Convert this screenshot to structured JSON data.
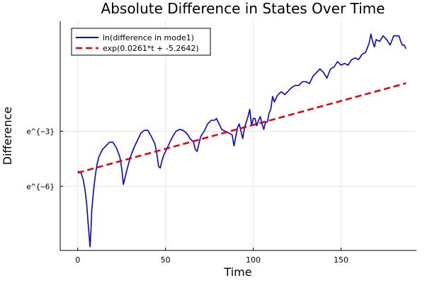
{
  "chart_data": {
    "type": "line",
    "title": "Absolute Difference in States Over Time",
    "xlabel": "Time",
    "ylabel": "Difference",
    "xlim": [
      -10,
      193
    ],
    "ylim": [
      -9.5,
      3
    ],
    "x_ticks": [
      0,
      50,
      100,
      150
    ],
    "y_ticks": [
      {
        "value": -3,
        "label": "e^{−3}"
      },
      {
        "value": -6,
        "label": "e^{−6}"
      }
    ],
    "y_scale": "log (natural)",
    "grid": true,
    "legend_position": "top-left",
    "colors": {
      "series1": "#0000ee",
      "series2": "#ee0000"
    },
    "series": [
      {
        "name": "ln(difference in mode1)",
        "style": "solid",
        "x": [
          0,
          1,
          2,
          3,
          4,
          5,
          6,
          7,
          7.5,
          8,
          9,
          10,
          11,
          12,
          14,
          16,
          18,
          20,
          22,
          24,
          25,
          26,
          28,
          30,
          32,
          34,
          36,
          38,
          40,
          42,
          44,
          45,
          46,
          47,
          48,
          49,
          50,
          52,
          54,
          56,
          58,
          60,
          62,
          64,
          66,
          67,
          68,
          69,
          70,
          72,
          74,
          76,
          78,
          79,
          80,
          81,
          82,
          84,
          86,
          88,
          89,
          90,
          91,
          92,
          94,
          95,
          96,
          97,
          98,
          99,
          100,
          101,
          102,
          103,
          104,
          105,
          106,
          107,
          108,
          109,
          110,
          111,
          112,
          114,
          116,
          118,
          120,
          122,
          124,
          126,
          128,
          130,
          132,
          134,
          136,
          138,
          140,
          142,
          144,
          146,
          148,
          150,
          152,
          154,
          156,
          158,
          160,
          162,
          164,
          166,
          167,
          168,
          169,
          170,
          172,
          174,
          176,
          178,
          180,
          182,
          183,
          184,
          185,
          186,
          187
        ],
        "values": [
          -5.2,
          -5.2,
          -5.3,
          -5.6,
          -6.1,
          -6.9,
          -8.1,
          -9.3,
          -8.4,
          -7.3,
          -6.2,
          -5.4,
          -4.8,
          -4.4,
          -4.0,
          -3.8,
          -3.6,
          -3.6,
          -3.9,
          -4.4,
          -5.0,
          -5.9,
          -5.1,
          -4.4,
          -3.9,
          -3.5,
          -3.1,
          -2.95,
          -2.95,
          -3.3,
          -3.7,
          -4.2,
          -4.9,
          -5.0,
          -4.6,
          -4.3,
          -4.1,
          -3.7,
          -3.3,
          -3.0,
          -2.9,
          -2.95,
          -3.1,
          -3.4,
          -3.6,
          -4.0,
          -4.1,
          -3.7,
          -3.3,
          -3.0,
          -2.6,
          -2.4,
          -2.4,
          -2.3,
          -2.5,
          -2.7,
          -2.9,
          -3.0,
          -3.1,
          -3.2,
          -3.8,
          -3.3,
          -2.8,
          -2.6,
          -3.4,
          -2.8,
          -2.5,
          -2.2,
          -1.8,
          -2.7,
          -2.3,
          -2.3,
          -2.7,
          -2.4,
          -2.2,
          -2.6,
          -2.9,
          -2.5,
          -2.5,
          -2.0,
          -1.8,
          -1.1,
          -1.4,
          -1.0,
          -0.85,
          -1.0,
          -0.8,
          -0.6,
          -0.5,
          -0.5,
          -0.3,
          -0.3,
          -0.4,
          0.0,
          0.2,
          0.4,
          0.2,
          -0.1,
          0.4,
          0.5,
          0.8,
          0.6,
          0.7,
          0.6,
          0.9,
          1.0,
          0.9,
          1.2,
          1.3,
          1.8,
          2.3,
          1.9,
          1.6,
          2.0,
          1.9,
          2.2,
          2.0,
          1.7,
          2.2,
          2.2,
          2.2,
          1.9,
          1.7,
          1.7,
          1.5
        ]
      },
      {
        "name": "exp(0.0261*t + -5.2642)",
        "style": "dashed",
        "x": [
          0,
          187
        ],
        "values": [
          -5.2642,
          -0.3835
        ]
      }
    ]
  }
}
